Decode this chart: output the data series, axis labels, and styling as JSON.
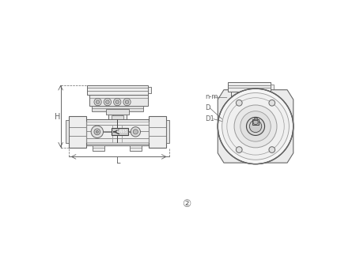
{
  "bg_color": "#ffffff",
  "lc": "#666666",
  "mg": "#999999",
  "fg": "#cccccc",
  "dg": "#444444",
  "circle2_symbol": "②",
  "label_H": "H",
  "label_L": "L",
  "label_n_m": "n-m",
  "label_D": "D",
  "label_D1": "D1",
  "figsize": [
    4.5,
    3.38
  ],
  "dpi": 100
}
